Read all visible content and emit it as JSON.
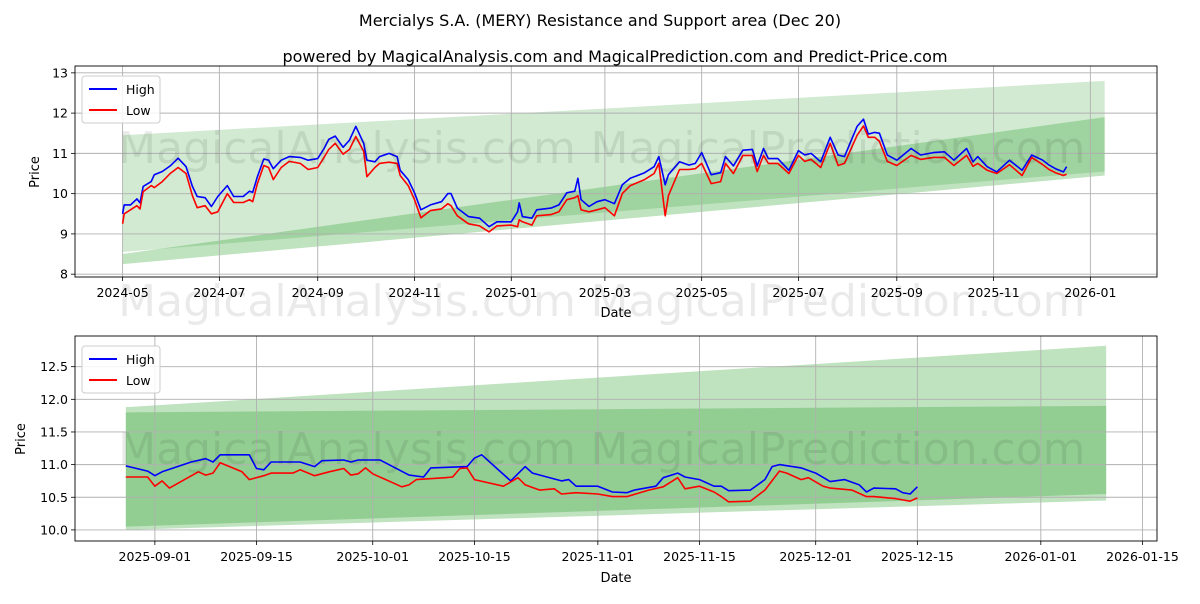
{
  "title": "Mercialys S.A. (MERY) Resistance and Support area (Dec 20)",
  "subtitle": "powered by MagicalAnalysis.com and MagicalPrediction.com and Predict-Price.com",
  "watermarks": [
    "MagicalAnalysis.com",
    "MagicalPrediction.com"
  ],
  "colors": {
    "high": "#0000ff",
    "low": "#ff0000",
    "band": "#2ca02c"
  },
  "chart_data": [
    {
      "type": "line",
      "xlabel": "Date",
      "ylabel": "Price",
      "xlim": [
        "2024-04-01",
        "2026-02-12"
      ],
      "ylim": [
        7.93,
        13.17
      ],
      "grid": true,
      "legend": {
        "placement": "top-left",
        "entries": [
          "High",
          "Low"
        ]
      },
      "xticks": [
        "2024-05",
        "2024-07",
        "2024-09",
        "2024-11",
        "2025-01",
        "2025-03",
        "2025-05",
        "2025-07",
        "2025-09",
        "2025-11",
        "2026-01"
      ],
      "yticks": [
        "8",
        "9",
        "10",
        "11",
        "12",
        "13"
      ],
      "bands": [
        {
          "start": "2024-05-01",
          "end": "2026-01-10",
          "upper": [
            11.45,
            12.8
          ],
          "lower": [
            8.55,
            10.55
          ],
          "alpha": 0.22
        },
        {
          "start": "2024-05-01",
          "end": "2026-01-10",
          "upper": [
            8.5,
            11.9
          ],
          "lower": [
            8.25,
            10.45
          ],
          "alpha": 0.3
        }
      ],
      "series": [
        [
          "2024-05-01",
          9.5,
          9.25
        ],
        [
          "2024-05-02",
          9.72,
          9.5
        ],
        [
          "2024-05-06",
          9.72,
          9.6
        ],
        [
          "2024-05-10",
          9.87,
          9.7
        ],
        [
          "2024-05-12",
          9.77,
          9.62
        ],
        [
          "2024-05-14",
          10.18,
          10.05
        ],
        [
          "2024-05-19",
          10.3,
          10.2
        ],
        [
          "2024-05-21",
          10.47,
          10.15
        ],
        [
          "2024-05-26",
          10.55,
          10.3
        ],
        [
          "2024-05-31",
          10.69,
          10.5
        ],
        [
          "2024-06-05",
          10.88,
          10.65
        ],
        [
          "2024-06-10",
          10.67,
          10.5
        ],
        [
          "2024-06-14",
          10.18,
          9.95
        ],
        [
          "2024-06-17",
          9.93,
          9.65
        ],
        [
          "2024-06-22",
          9.9,
          9.7
        ],
        [
          "2024-06-26",
          9.68,
          9.5
        ],
        [
          "2024-06-30",
          9.93,
          9.55
        ],
        [
          "2024-07-06",
          10.2,
          10.0
        ],
        [
          "2024-07-10",
          9.93,
          9.78
        ],
        [
          "2024-07-16",
          9.93,
          9.78
        ],
        [
          "2024-07-20",
          10.06,
          9.85
        ],
        [
          "2024-07-22",
          10.03,
          9.8
        ],
        [
          "2024-07-25",
          10.42,
          10.25
        ],
        [
          "2024-07-29",
          10.86,
          10.7
        ],
        [
          "2024-08-01",
          10.83,
          10.65
        ],
        [
          "2024-08-04",
          10.62,
          10.35
        ],
        [
          "2024-08-09",
          10.83,
          10.65
        ],
        [
          "2024-08-14",
          10.92,
          10.8
        ],
        [
          "2024-08-21",
          10.9,
          10.75
        ],
        [
          "2024-08-26",
          10.83,
          10.6
        ],
        [
          "2024-09-01",
          10.87,
          10.65
        ],
        [
          "2024-09-05",
          11.12,
          10.9
        ],
        [
          "2024-09-08",
          11.35,
          11.1
        ],
        [
          "2024-09-12",
          11.43,
          11.25
        ],
        [
          "2024-09-17",
          11.15,
          10.98
        ],
        [
          "2024-09-21",
          11.33,
          11.1
        ],
        [
          "2024-09-25",
          11.67,
          11.42
        ],
        [
          "2024-09-30",
          11.25,
          11.05
        ],
        [
          "2024-10-02",
          10.83,
          10.42
        ],
        [
          "2024-10-07",
          10.79,
          10.65
        ],
        [
          "2024-10-10",
          10.92,
          10.75
        ],
        [
          "2024-10-16",
          11.0,
          10.78
        ],
        [
          "2024-10-21",
          10.92,
          10.75
        ],
        [
          "2024-10-23",
          10.58,
          10.45
        ],
        [
          "2024-10-28",
          10.35,
          10.2
        ],
        [
          "2024-11-01",
          10.02,
          9.85
        ],
        [
          "2024-11-05",
          9.6,
          9.4
        ],
        [
          "2024-11-11",
          9.72,
          9.58
        ],
        [
          "2024-11-18",
          9.8,
          9.62
        ],
        [
          "2024-11-22",
          10.0,
          9.75
        ],
        [
          "2024-11-24",
          10.0,
          9.7
        ],
        [
          "2024-11-28",
          9.64,
          9.45
        ],
        [
          "2024-12-05",
          9.43,
          9.25
        ],
        [
          "2024-12-12",
          9.39,
          9.2
        ],
        [
          "2024-12-18",
          9.18,
          9.05
        ],
        [
          "2024-12-23",
          9.3,
          9.2
        ],
        [
          "2025-01-01",
          9.3,
          9.22
        ],
        [
          "2025-01-05",
          9.55,
          9.18
        ],
        [
          "2025-01-06",
          9.77,
          9.35
        ],
        [
          "2025-01-08",
          9.43,
          9.3
        ],
        [
          "2025-01-14",
          9.39,
          9.22
        ],
        [
          "2025-01-17",
          9.6,
          9.45
        ],
        [
          "2025-01-26",
          9.64,
          9.48
        ],
        [
          "2025-01-31",
          9.72,
          9.55
        ],
        [
          "2025-02-05",
          10.02,
          9.85
        ],
        [
          "2025-02-10",
          10.06,
          9.9
        ],
        [
          "2025-02-12",
          10.38,
          9.95
        ],
        [
          "2025-02-14",
          9.85,
          9.6
        ],
        [
          "2025-02-19",
          9.68,
          9.55
        ],
        [
          "2025-02-24",
          9.8,
          9.6
        ],
        [
          "2025-03-01",
          9.85,
          9.65
        ],
        [
          "2025-03-07",
          9.75,
          9.45
        ],
        [
          "2025-03-12",
          10.22,
          10.0
        ],
        [
          "2025-03-17",
          10.38,
          10.2
        ],
        [
          "2025-03-26",
          10.52,
          10.35
        ],
        [
          "2025-04-01",
          10.67,
          10.5
        ],
        [
          "2025-04-04",
          10.92,
          10.75
        ],
        [
          "2025-04-08",
          10.22,
          9.45
        ],
        [
          "2025-04-10",
          10.47,
          9.95
        ],
        [
          "2025-04-17",
          10.79,
          10.6
        ],
        [
          "2025-04-23",
          10.71,
          10.6
        ],
        [
          "2025-04-27",
          10.75,
          10.62
        ],
        [
          "2025-05-01",
          11.02,
          10.75
        ],
        [
          "2025-05-07",
          10.47,
          10.25
        ],
        [
          "2025-05-13",
          10.52,
          10.3
        ],
        [
          "2025-05-16",
          10.92,
          10.75
        ],
        [
          "2025-05-21",
          10.69,
          10.5
        ],
        [
          "2025-05-27",
          11.08,
          10.95
        ],
        [
          "2025-06-02",
          11.1,
          10.95
        ],
        [
          "2025-06-05",
          10.69,
          10.55
        ],
        [
          "2025-06-09",
          11.12,
          10.95
        ],
        [
          "2025-06-12",
          10.87,
          10.75
        ],
        [
          "2025-06-18",
          10.87,
          10.75
        ],
        [
          "2025-06-25",
          10.58,
          10.5
        ],
        [
          "2025-07-01",
          11.07,
          10.95
        ],
        [
          "2025-07-05",
          10.96,
          10.8
        ],
        [
          "2025-07-09",
          11.0,
          10.85
        ],
        [
          "2025-07-15",
          10.79,
          10.65
        ],
        [
          "2025-07-21",
          11.4,
          11.25
        ],
        [
          "2025-07-26",
          10.96,
          10.7
        ],
        [
          "2025-07-30",
          10.92,
          10.75
        ],
        [
          "2025-08-07",
          11.67,
          11.45
        ],
        [
          "2025-08-11",
          11.85,
          11.68
        ],
        [
          "2025-08-14",
          11.48,
          11.4
        ],
        [
          "2025-08-18",
          11.52,
          11.4
        ],
        [
          "2025-08-21",
          11.5,
          11.3
        ],
        [
          "2025-08-26",
          10.96,
          10.8
        ],
        [
          "2025-09-01",
          10.83,
          10.7
        ],
        [
          "2025-09-10",
          11.12,
          10.95
        ],
        [
          "2025-09-16",
          10.96,
          10.85
        ],
        [
          "2025-09-24",
          11.02,
          10.9
        ],
        [
          "2025-10-01",
          11.04,
          10.9
        ],
        [
          "2025-10-07",
          10.83,
          10.7
        ],
        [
          "2025-10-15",
          11.12,
          10.95
        ],
        [
          "2025-10-19",
          10.79,
          10.68
        ],
        [
          "2025-10-22",
          10.92,
          10.75
        ],
        [
          "2025-10-28",
          10.67,
          10.58
        ],
        [
          "2025-11-03",
          10.54,
          10.5
        ],
        [
          "2025-11-11",
          10.83,
          10.72
        ],
        [
          "2025-11-19",
          10.58,
          10.45
        ],
        [
          "2025-11-25",
          10.96,
          10.9
        ],
        [
          "2025-12-02",
          10.83,
          10.72
        ],
        [
          "2025-12-06",
          10.71,
          10.6
        ],
        [
          "2025-12-10",
          10.62,
          10.52
        ],
        [
          "2025-12-15",
          10.54,
          10.45
        ],
        [
          "2025-12-17",
          10.67,
          10.48
        ]
      ]
    },
    {
      "type": "line",
      "xlabel": "Date",
      "ylabel": "Price",
      "xlim": [
        "2025-08-21",
        "2026-01-17"
      ],
      "ylim": [
        9.83,
        12.97
      ],
      "grid": true,
      "legend": {
        "placement": "top-left",
        "entries": [
          "High",
          "Low"
        ]
      },
      "xticks": [
        "2025-09-01",
        "2025-09-15",
        "2025-10-01",
        "2025-10-15",
        "2025-11-01",
        "2025-11-15",
        "2025-12-01",
        "2025-12-15",
        "2026-01-01",
        "2026-01-15"
      ],
      "yticks": [
        "10.0",
        "10.5",
        "11.0",
        "11.5",
        "12.0",
        "12.5"
      ],
      "bands": [
        {
          "start": "2025-08-28",
          "end": "2026-01-10",
          "upper": [
            11.88,
            12.82
          ],
          "lower": [
            10.05,
            10.55
          ],
          "alpha": 0.3
        },
        {
          "start": "2025-08-28",
          "end": "2026-01-10",
          "upper": [
            11.8,
            11.9
          ],
          "lower": [
            10.0,
            10.45
          ],
          "alpha": 0.3
        }
      ],
      "high": [
        [
          "2025-08-28",
          10.98
        ],
        [
          "2025-08-31",
          10.9
        ],
        [
          "2025-09-01",
          10.83
        ],
        [
          "2025-09-02",
          10.89
        ],
        [
          "2025-09-06",
          11.04
        ],
        [
          "2025-09-08",
          11.09
        ],
        [
          "2025-09-09",
          11.04
        ],
        [
          "2025-09-10",
          11.15
        ],
        [
          "2025-09-14",
          11.15
        ],
        [
          "2025-09-15",
          10.94
        ],
        [
          "2025-09-16",
          10.92
        ],
        [
          "2025-09-17",
          11.04
        ],
        [
          "2025-09-21",
          11.04
        ],
        [
          "2025-09-23",
          10.97
        ],
        [
          "2025-09-24",
          11.06
        ],
        [
          "2025-09-27",
          11.07
        ],
        [
          "2025-09-28",
          11.04
        ],
        [
          "2025-09-29",
          11.07
        ],
        [
          "2025-10-02",
          11.07
        ],
        [
          "2025-10-06",
          10.84
        ],
        [
          "2025-10-08",
          10.81
        ],
        [
          "2025-10-09",
          10.95
        ],
        [
          "2025-10-14",
          10.97
        ],
        [
          "2025-10-15",
          11.1
        ],
        [
          "2025-10-16",
          11.15
        ],
        [
          "2025-10-20",
          10.75
        ],
        [
          "2025-10-22",
          10.97
        ],
        [
          "2025-10-23",
          10.87
        ],
        [
          "2025-10-27",
          10.75
        ],
        [
          "2025-10-28",
          10.77
        ],
        [
          "2025-10-29",
          10.67
        ],
        [
          "2025-11-01",
          10.67
        ],
        [
          "2025-11-03",
          10.58
        ],
        [
          "2025-11-05",
          10.57
        ],
        [
          "2025-11-06",
          10.61
        ],
        [
          "2025-11-09",
          10.67
        ],
        [
          "2025-11-10",
          10.8
        ],
        [
          "2025-11-12",
          10.87
        ],
        [
          "2025-11-13",
          10.81
        ],
        [
          "2025-11-15",
          10.77
        ],
        [
          "2025-11-17",
          10.67
        ],
        [
          "2025-11-18",
          10.67
        ],
        [
          "2025-11-19",
          10.6
        ],
        [
          "2025-11-22",
          10.61
        ],
        [
          "2025-11-24",
          10.77
        ],
        [
          "2025-11-25",
          10.97
        ],
        [
          "2025-11-26",
          11.0
        ],
        [
          "2025-11-29",
          10.95
        ],
        [
          "2025-12-01",
          10.87
        ],
        [
          "2025-12-03",
          10.74
        ],
        [
          "2025-12-05",
          10.77
        ],
        [
          "2025-12-07",
          10.69
        ],
        [
          "2025-12-08",
          10.58
        ],
        [
          "2025-12-09",
          10.64
        ],
        [
          "2025-12-12",
          10.63
        ],
        [
          "2025-12-13",
          10.57
        ],
        [
          "2025-12-14",
          10.55
        ],
        [
          "2025-12-15",
          10.66
        ]
      ],
      "low": [
        [
          "2025-08-28",
          10.81
        ],
        [
          "2025-08-31",
          10.81
        ],
        [
          "2025-09-01",
          10.67
        ],
        [
          "2025-09-02",
          10.75
        ],
        [
          "2025-09-03",
          10.64
        ],
        [
          "2025-09-07",
          10.89
        ],
        [
          "2025-09-08",
          10.84
        ],
        [
          "2025-09-09",
          10.87
        ],
        [
          "2025-09-10",
          11.03
        ],
        [
          "2025-09-13",
          10.89
        ],
        [
          "2025-09-14",
          10.77
        ],
        [
          "2025-09-16",
          10.83
        ],
        [
          "2025-09-17",
          10.87
        ],
        [
          "2025-09-20",
          10.87
        ],
        [
          "2025-09-21",
          10.92
        ],
        [
          "2025-09-23",
          10.83
        ],
        [
          "2025-09-25",
          10.89
        ],
        [
          "2025-09-27",
          10.94
        ],
        [
          "2025-09-28",
          10.84
        ],
        [
          "2025-09-29",
          10.86
        ],
        [
          "2025-09-30",
          10.95
        ],
        [
          "2025-10-01",
          10.86
        ],
        [
          "2025-10-05",
          10.66
        ],
        [
          "2025-10-06",
          10.69
        ],
        [
          "2025-10-07",
          10.77
        ],
        [
          "2025-10-11",
          10.8
        ],
        [
          "2025-10-12",
          10.81
        ],
        [
          "2025-10-13",
          10.94
        ],
        [
          "2025-10-14",
          10.95
        ],
        [
          "2025-10-15",
          10.77
        ],
        [
          "2025-10-19",
          10.67
        ],
        [
          "2025-10-21",
          10.8
        ],
        [
          "2025-10-22",
          10.69
        ],
        [
          "2025-10-24",
          10.61
        ],
        [
          "2025-10-26",
          10.63
        ],
        [
          "2025-10-27",
          10.55
        ],
        [
          "2025-10-29",
          10.57
        ],
        [
          "2025-11-01",
          10.55
        ],
        [
          "2025-11-03",
          10.51
        ],
        [
          "2025-11-05",
          10.51
        ],
        [
          "2025-11-08",
          10.61
        ],
        [
          "2025-11-10",
          10.66
        ],
        [
          "2025-11-12",
          10.8
        ],
        [
          "2025-11-13",
          10.63
        ],
        [
          "2025-11-15",
          10.67
        ],
        [
          "2025-11-17",
          10.58
        ],
        [
          "2025-11-18",
          10.51
        ],
        [
          "2025-11-19",
          10.43
        ],
        [
          "2025-11-22",
          10.44
        ],
        [
          "2025-11-24",
          10.61
        ],
        [
          "2025-11-26",
          10.9
        ],
        [
          "2025-11-27",
          10.87
        ],
        [
          "2025-11-29",
          10.77
        ],
        [
          "2025-11-30",
          10.8
        ],
        [
          "2025-12-02",
          10.67
        ],
        [
          "2025-12-03",
          10.64
        ],
        [
          "2025-12-06",
          10.61
        ],
        [
          "2025-12-08",
          10.51
        ],
        [
          "2025-12-09",
          10.51
        ],
        [
          "2025-12-12",
          10.48
        ],
        [
          "2025-12-14",
          10.44
        ],
        [
          "2025-12-15",
          10.49
        ]
      ]
    }
  ]
}
